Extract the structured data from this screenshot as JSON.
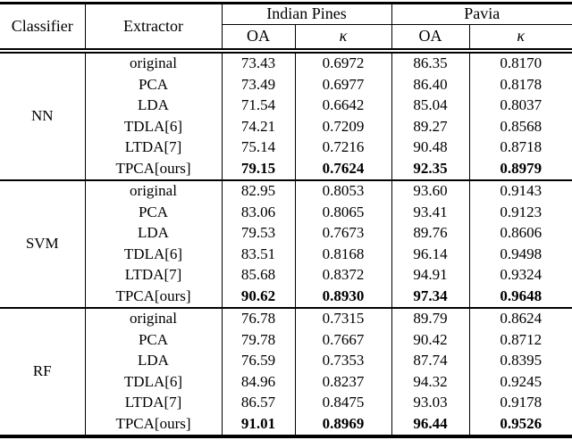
{
  "table": {
    "header": {
      "classifier_label": "Classifier",
      "extractor_label": "Extractor",
      "group1_label": "Indian Pines",
      "group2_label": "Pavia",
      "oa_label": "OA",
      "kappa_label": "κ"
    },
    "groups": [
      {
        "classifier": "NN",
        "rows": [
          {
            "extractor": "original",
            "ip_oa": "73.43",
            "ip_kappa": "0.6972",
            "pv_oa": "86.35",
            "pv_kappa": "0.8170"
          },
          {
            "extractor": "PCA",
            "ip_oa": "73.49",
            "ip_kappa": "0.6977",
            "pv_oa": "86.40",
            "pv_kappa": "0.8178"
          },
          {
            "extractor": "LDA",
            "ip_oa": "71.54",
            "ip_kappa": "0.6642",
            "pv_oa": "85.04",
            "pv_kappa": "0.8037"
          },
          {
            "extractor": "TDLA[6]",
            "ip_oa": "74.21",
            "ip_kappa": "0.7209",
            "pv_oa": "89.27",
            "pv_kappa": "0.8568"
          },
          {
            "extractor": "LTDA[7]",
            "ip_oa": "75.14",
            "ip_kappa": "0.7216",
            "pv_oa": "90.48",
            "pv_kappa": "0.8718"
          },
          {
            "extractor": "TPCA[ours]",
            "ip_oa": "79.15",
            "ip_kappa": "0.7624",
            "pv_oa": "92.35",
            "pv_kappa": "0.8979",
            "bold": true
          }
        ]
      },
      {
        "classifier": "SVM",
        "rows": [
          {
            "extractor": "original",
            "ip_oa": "82.95",
            "ip_kappa": "0.8053",
            "pv_oa": "93.60",
            "pv_kappa": "0.9143"
          },
          {
            "extractor": "PCA",
            "ip_oa": "83.06",
            "ip_kappa": "0.8065",
            "pv_oa": "93.41",
            "pv_kappa": "0.9123"
          },
          {
            "extractor": "LDA",
            "ip_oa": "79.53",
            "ip_kappa": "0.7673",
            "pv_oa": "89.76",
            "pv_kappa": "0.8606"
          },
          {
            "extractor": "TDLA[6]",
            "ip_oa": "83.51",
            "ip_kappa": "0.8168",
            "pv_oa": "96.14",
            "pv_kappa": "0.9498"
          },
          {
            "extractor": "LTDA[7]",
            "ip_oa": "85.68",
            "ip_kappa": "0.8372",
            "pv_oa": "94.91",
            "pv_kappa": "0.9324"
          },
          {
            "extractor": "TPCA[ours]",
            "ip_oa": "90.62",
            "ip_kappa": "0.8930",
            "pv_oa": "97.34",
            "pv_kappa": "0.9648",
            "bold": true
          }
        ]
      },
      {
        "classifier": "RF",
        "rows": [
          {
            "extractor": "original",
            "ip_oa": "76.78",
            "ip_kappa": "0.7315",
            "pv_oa": "89.79",
            "pv_kappa": "0.8624"
          },
          {
            "extractor": "PCA",
            "ip_oa": "79.78",
            "ip_kappa": "0.7667",
            "pv_oa": "90.42",
            "pv_kappa": "0.8712"
          },
          {
            "extractor": "LDA",
            "ip_oa": "76.59",
            "ip_kappa": "0.7353",
            "pv_oa": "87.74",
            "pv_kappa": "0.8395"
          },
          {
            "extractor": "TDLA[6]",
            "ip_oa": "84.96",
            "ip_kappa": "0.8237",
            "pv_oa": "94.32",
            "pv_kappa": "0.9245"
          },
          {
            "extractor": "LTDA[7]",
            "ip_oa": "86.57",
            "ip_kappa": "0.8475",
            "pv_oa": "93.03",
            "pv_kappa": "0.9178"
          },
          {
            "extractor": "TPCA[ours]",
            "ip_oa": "91.01",
            "ip_kappa": "0.8969",
            "pv_oa": "96.44",
            "pv_kappa": "0.9526",
            "bold": true
          }
        ]
      }
    ]
  }
}
